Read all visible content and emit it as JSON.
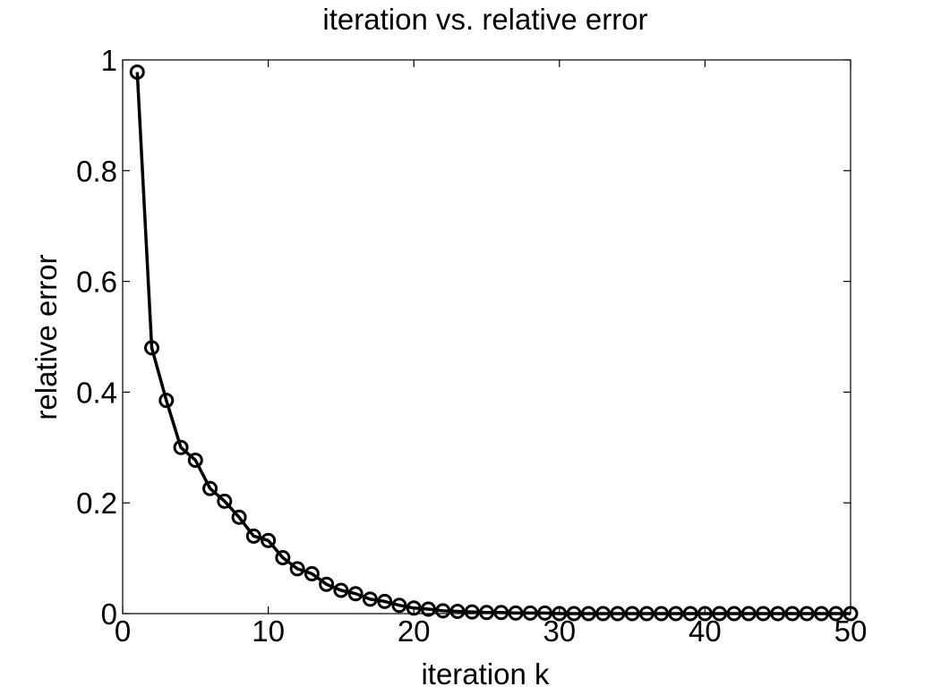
{
  "chart_data": {
    "type": "line",
    "title": "iteration  vs.  relative error",
    "xlabel": "iteration k",
    "ylabel": "relative error",
    "xlim": [
      0,
      50
    ],
    "ylim": [
      0,
      1
    ],
    "xticks": [
      0,
      10,
      20,
      30,
      40,
      50
    ],
    "xtick_labels": [
      "0",
      "10",
      "20",
      "30",
      "40",
      "50"
    ],
    "yticks": [
      0,
      0.2,
      0.4,
      0.6,
      0.8,
      1
    ],
    "ytick_labels": [
      "0",
      "0.2",
      "0.4",
      "0.6",
      "0.8",
      "1"
    ],
    "grid": false,
    "legend": "none",
    "marker": "circle",
    "line_color": "#000000",
    "series": [
      {
        "x": [
          1,
          2,
          3,
          4,
          5,
          6,
          7,
          8,
          9,
          10,
          11,
          12,
          13,
          14,
          15,
          16,
          17,
          18,
          19,
          20,
          21,
          22,
          23,
          24,
          25,
          26,
          27,
          28,
          29,
          30,
          31,
          32,
          33,
          34,
          35,
          36,
          37,
          38,
          39,
          40,
          41,
          42,
          43,
          44,
          45,
          46,
          47,
          48,
          49,
          50
        ],
        "values": [
          0.978,
          0.48,
          0.385,
          0.3,
          0.277,
          0.226,
          0.203,
          0.174,
          0.14,
          0.132,
          0.101,
          0.081,
          0.072,
          0.053,
          0.042,
          0.036,
          0.026,
          0.022,
          0.015,
          0.01,
          0.008,
          0.005,
          0.004,
          0.003,
          0.002,
          0.002,
          0.001,
          0.001,
          0.001,
          0.0,
          0.0,
          0.0,
          0.0,
          0.0,
          0.0,
          0.0,
          0.0,
          0.0,
          0.0,
          0.0,
          0.0,
          0.0,
          0.0,
          0.0,
          0.0,
          0.0,
          0.0,
          0.0,
          0.0,
          0.0
        ]
      }
    ]
  }
}
